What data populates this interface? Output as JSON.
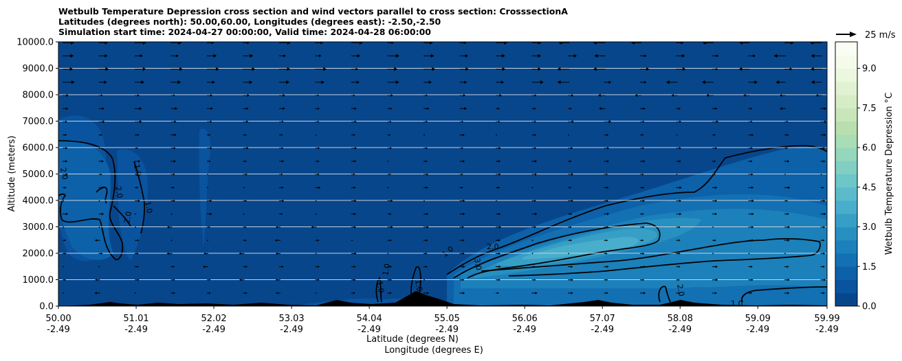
{
  "chart_data": {
    "type": "heatmap",
    "title_lines": [
      "Wetbulb Temperature Depression cross section and wind vectors parallel to cross section: CrosssectionA",
      "Latitudes (degrees north): 50.00,60.00, Longitudes (degrees east): -2.50,-2.50",
      "Simulation start time: 2024-04-27 00:00:00, Valid time: 2024-04-28 06:00:00"
    ],
    "xlabel_lines": [
      "Latitude (degrees N)",
      "Longitude (degrees E)"
    ],
    "ylabel": "Altitude (meters)",
    "ylim": [
      0,
      10000
    ],
    "xlim": [
      50.0,
      59.99
    ],
    "x_ticks": [
      {
        "lat": "50.00",
        "lon": "-2.49"
      },
      {
        "lat": "51.01",
        "lon": "-2.49"
      },
      {
        "lat": "52.02",
        "lon": "-2.49"
      },
      {
        "lat": "53.03",
        "lon": "-2.49"
      },
      {
        "lat": "54.04",
        "lon": "-2.49"
      },
      {
        "lat": "55.05",
        "lon": "-2.49"
      },
      {
        "lat": "56.06",
        "lon": "-2.49"
      },
      {
        "lat": "57.07",
        "lon": "-2.49"
      },
      {
        "lat": "58.08",
        "lon": "-2.49"
      },
      {
        "lat": "59.09",
        "lon": "-2.49"
      },
      {
        "lat": "59.99",
        "lon": "-2.49"
      }
    ],
    "y_ticks": [
      "0.0",
      "1000.0",
      "2000.0",
      "3000.0",
      "4000.0",
      "5000.0",
      "6000.0",
      "7000.0",
      "8000.0",
      "9000.0",
      "10000.0"
    ],
    "colorbar": {
      "label": "Wetbulb Temperature Depression $^\\circ$C",
      "label_display": "Wetbulb Temperature Depression °C",
      "range": [
        0,
        10
      ],
      "ticks": [
        "0.0",
        "1.5",
        "3.0",
        "4.5",
        "6.0",
        "7.5",
        "9.0"
      ],
      "colors": [
        "#08468b",
        "#0a539e",
        "#0c61a9",
        "#1370b3",
        "#1c80ba",
        "#2890c0",
        "#379fc6",
        "#49aecb",
        "#5bbbcb",
        "#6dc6c8",
        "#80cfc2",
        "#94d7bd",
        "#a8ddb6",
        "#badfaf",
        "#c9e6bb",
        "#d6ecc6",
        "#e1f2d2",
        "#ebf7de",
        "#f4fbea",
        "#f9fdf3"
      ]
    },
    "wind_key": {
      "label": "25 m/s",
      "value": 25
    },
    "contour_levels": [
      "1.0",
      "2.0",
      "3.0"
    ],
    "grid": "horizontal",
    "terrain": "black filled orography along surface"
  }
}
